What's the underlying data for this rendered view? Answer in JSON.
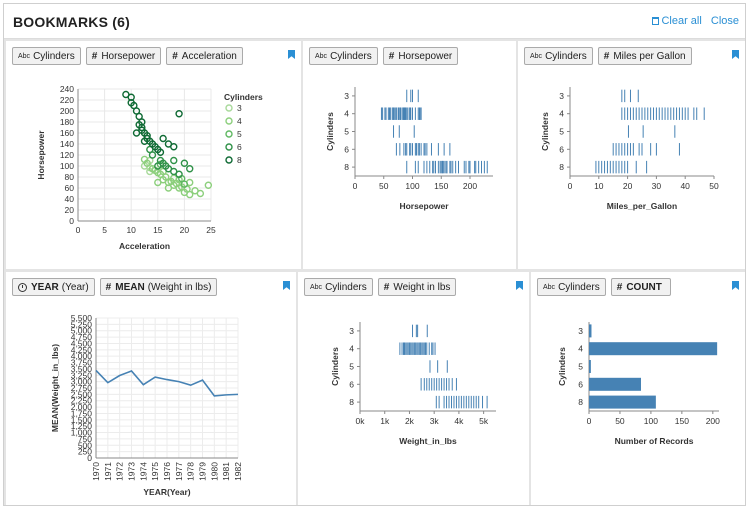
{
  "app": {
    "title": "BOOKMARKS (6)",
    "clear_all_label": "Clear all",
    "close_label": "Close"
  },
  "panels": [
    {
      "pills": [
        {
          "icon": "abc-icon",
          "label": "Cylinders"
        },
        {
          "icon": "hash-icon",
          "label": "Horsepower"
        },
        {
          "icon": "hash-icon",
          "label": "Acceleration"
        }
      ]
    },
    {
      "pills": [
        {
          "icon": "abc-icon",
          "label": "Cylinders"
        },
        {
          "icon": "hash-icon",
          "label": "Horsepower"
        }
      ]
    },
    {
      "pills": [
        {
          "icon": "abc-icon",
          "label": "Cylinders"
        },
        {
          "icon": "hash-icon",
          "label": "Miles per Gallon"
        }
      ]
    },
    {
      "pills": [
        {
          "icon": "clock-icon",
          "bold": "YEAR",
          "label": "(Year)"
        },
        {
          "icon": "hash-icon",
          "bold": "MEAN",
          "label": "(Weight in lbs)"
        }
      ]
    },
    {
      "pills": [
        {
          "icon": "abc-icon",
          "label": "Cylinders"
        },
        {
          "icon": "hash-icon",
          "label": "Weight in lbs"
        }
      ]
    },
    {
      "pills": [
        {
          "icon": "abc-icon",
          "label": "Cylinders"
        },
        {
          "icon": "hash-icon",
          "bold": "COUNT",
          "label": ""
        }
      ]
    }
  ],
  "colors": {
    "accent": "#2a8fd4",
    "mark": "#4682b4",
    "cyl3": "#a8d99a",
    "cyl4": "#8ccf7c",
    "cyl5": "#5fb862",
    "cyl6": "#2f9148",
    "cyl8": "#0f6a34"
  },
  "chart_data": [
    {
      "type": "scatter",
      "xlabel": "Acceleration",
      "ylabel": "Horsepower",
      "xlim": [
        0,
        25
      ],
      "ylim": [
        0,
        240
      ],
      "xticks": [
        0,
        5,
        10,
        15,
        20,
        25
      ],
      "yticks": [
        0,
        20,
        40,
        60,
        80,
        100,
        120,
        140,
        160,
        180,
        200,
        220,
        240
      ],
      "legend": {
        "title": "Cylinders",
        "placement": "right",
        "entries": [
          "3",
          "4",
          "5",
          "6",
          "8"
        ]
      },
      "series": [
        {
          "name": "3",
          "points": [
            [
              13.5,
              97
            ],
            [
              13.5,
              110
            ],
            [
              12.5,
              100
            ],
            [
              13.5,
              90
            ]
          ]
        },
        {
          "name": "4",
          "points": [
            [
              15,
              88
            ],
            [
              16,
              75
            ],
            [
              17,
              70
            ],
            [
              18,
              65
            ],
            [
              19,
              60
            ],
            [
              20,
              52
            ],
            [
              21,
              48
            ],
            [
              14,
              95
            ],
            [
              15.5,
              85
            ],
            [
              16.5,
              80
            ],
            [
              17.5,
              72
            ],
            [
              18.5,
              68
            ],
            [
              19.5,
              62
            ],
            [
              20.5,
              58
            ],
            [
              22,
              55
            ],
            [
              23,
              50
            ],
            [
              24.5,
              65
            ],
            [
              14.5,
              92
            ],
            [
              13,
              105
            ],
            [
              12.5,
              112
            ],
            [
              16,
              90
            ],
            [
              18,
              78
            ],
            [
              21,
              70
            ],
            [
              15,
              70
            ],
            [
              17,
              60
            ],
            [
              19,
              75
            ]
          ]
        },
        {
          "name": "5",
          "points": [
            [
              19.5,
              77
            ],
            [
              20,
              67
            ],
            [
              15.5,
              103
            ]
          ]
        },
        {
          "name": "6",
          "points": [
            [
              15,
              100
            ],
            [
              16,
              105
            ],
            [
              15.5,
              110
            ],
            [
              14,
              120
            ],
            [
              17,
              95
            ],
            [
              18,
              90
            ],
            [
              16.5,
              100
            ],
            [
              19,
              85
            ],
            [
              13.5,
              130
            ],
            [
              18,
              110
            ],
            [
              20,
              105
            ],
            [
              21,
              95
            ]
          ]
        },
        {
          "name": "8",
          "points": [
            [
              10,
              215
            ],
            [
              10,
              225
            ],
            [
              11,
              200
            ],
            [
              12,
              180
            ],
            [
              11.5,
              190
            ],
            [
              12,
              170
            ],
            [
              12.5,
              160
            ],
            [
              13,
              150
            ],
            [
              14,
              140
            ],
            [
              15,
              130
            ],
            [
              9,
              230
            ],
            [
              10.5,
              210
            ],
            [
              11.5,
              175
            ],
            [
              12,
              165
            ],
            [
              13,
              155
            ],
            [
              13.5,
              145
            ],
            [
              14.5,
              135
            ],
            [
              15.5,
              125
            ],
            [
              16,
              150
            ],
            [
              17,
              140
            ],
            [
              19,
              195
            ],
            [
              18,
              135
            ],
            [
              11,
              160
            ],
            [
              12.5,
              145
            ]
          ]
        }
      ]
    },
    {
      "type": "strip",
      "xlabel": "Horsepower",
      "ylabel": "Cylinders",
      "xlim": [
        0,
        240
      ],
      "xticks": [
        0,
        50,
        100,
        150,
        200
      ],
      "categories": [
        "3",
        "4",
        "5",
        "6",
        "8"
      ],
      "values": {
        "3": [
          90,
          97,
          100,
          110
        ],
        "4": [
          46,
          48,
          52,
          54,
          58,
          60,
          62,
          65,
          67,
          68,
          70,
          72,
          75,
          76,
          78,
          79,
          80,
          83,
          84,
          85,
          86,
          87,
          88,
          90,
          92,
          95,
          96,
          97,
          100,
          105,
          110,
          112,
          113,
          115
        ],
        "5": [
          67,
          77,
          103
        ],
        "6": [
          72,
          78,
          85,
          88,
          90,
          95,
          97,
          100,
          105,
          107,
          110,
          112,
          115,
          120,
          122,
          125,
          133,
          145,
          155,
          165
        ],
        "8": [
          90,
          105,
          110,
          120,
          125,
          130,
          135,
          137,
          140,
          145,
          148,
          150,
          152,
          153,
          155,
          158,
          160,
          165,
          167,
          170,
          175,
          180,
          190,
          193,
          198,
          200,
          208,
          210,
          215,
          220,
          225,
          230
        ]
      }
    },
    {
      "type": "strip",
      "xlabel": "Miles_per_Gallon",
      "ylabel": "Cylinders",
      "xlim": [
        0,
        50
      ],
      "xticks": [
        0,
        10,
        20,
        30,
        40,
        50
      ],
      "categories": [
        "3",
        "4",
        "5",
        "6",
        "8"
      ],
      "values": {
        "3": [
          18,
          19,
          21,
          23.7
        ],
        "4": [
          18,
          19,
          20,
          21,
          22,
          23,
          24,
          25,
          26,
          27,
          28,
          29,
          30,
          31,
          32,
          33,
          34,
          35,
          36,
          37,
          38,
          39,
          40,
          41,
          43,
          44,
          46.6
        ],
        "5": [
          20.3,
          25.4,
          36.4
        ],
        "6": [
          15,
          16,
          17,
          18,
          19,
          20,
          21,
          22,
          24,
          25,
          28,
          30,
          38
        ],
        "8": [
          9,
          10,
          11,
          12,
          13,
          14,
          15,
          16,
          17,
          18,
          19,
          20,
          23,
          26.6
        ]
      }
    },
    {
      "type": "line",
      "xlabel": "YEAR(Year)",
      "ylabel": "MEAN(Weight_in_lbs)",
      "ylim": [
        0,
        5500
      ],
      "yticks": [
        0,
        250,
        500,
        750,
        1000,
        1250,
        1500,
        1750,
        2000,
        2250,
        2500,
        2750,
        3000,
        3250,
        3500,
        3750,
        4000,
        4250,
        4500,
        4750,
        5000,
        5250,
        5500
      ],
      "ytick_labels": [
        "0",
        "250",
        "500",
        "750",
        "1,000",
        "1,250",
        "1,500",
        "1,750",
        "2,000",
        "2,250",
        "2,500",
        "2,750",
        "3,000",
        "3,250",
        "3,500",
        "3,750",
        "4,000",
        "4,250",
        "4,500",
        "4,750",
        "5,000",
        "5,250",
        "5,500"
      ],
      "categories": [
        "1970",
        "1971",
        "1972",
        "1973",
        "1974",
        "1975",
        "1976",
        "1977",
        "1978",
        "1979",
        "1980",
        "1981",
        "1982"
      ],
      "values": [
        3440,
        2960,
        3240,
        3420,
        2880,
        3180,
        3080,
        3000,
        2860,
        3060,
        2440,
        2480,
        2500
      ]
    },
    {
      "type": "strip",
      "xlabel": "Weight_in_lbs",
      "ylabel": "Cylinders",
      "xlim": [
        0,
        5500
      ],
      "xticks": [
        0,
        1000,
        2000,
        3000,
        4000,
        5000
      ],
      "xtick_labels": [
        "0k",
        "1k",
        "2k",
        "3k",
        "4k",
        "5k"
      ],
      "categories": [
        "3",
        "4",
        "5",
        "6",
        "8"
      ],
      "values": {
        "3": [
          2124,
          2279,
          2330,
          2720
        ],
        "4": [
          1613,
          1700,
          1760,
          1800,
          1850,
          1900,
          1950,
          2000,
          2050,
          2100,
          2150,
          2200,
          2250,
          2300,
          2350,
          2400,
          2450,
          2500,
          2550,
          2600,
          2650,
          2700,
          2800,
          2900,
          2950,
          3035
        ],
        "5": [
          2830,
          3140,
          3530
        ],
        "6": [
          2472,
          2600,
          2700,
          2800,
          2900,
          3000,
          3100,
          3200,
          3300,
          3400,
          3500,
          3600,
          3730,
          3900
        ],
        "8": [
          3086,
          3200,
          3400,
          3500,
          3600,
          3700,
          3800,
          3900,
          4000,
          4100,
          4200,
          4300,
          4400,
          4500,
          4600,
          4700,
          4800,
          4955,
          5140
        ]
      }
    },
    {
      "type": "bar",
      "orientation": "horizontal",
      "xlabel": "Number of Records",
      "ylabel": "Cylinders",
      "xlim": [
        0,
        210
      ],
      "xticks": [
        0,
        50,
        100,
        150,
        200
      ],
      "categories": [
        "3",
        "4",
        "5",
        "6",
        "8"
      ],
      "values": [
        4,
        207,
        3,
        84,
        108
      ]
    }
  ]
}
